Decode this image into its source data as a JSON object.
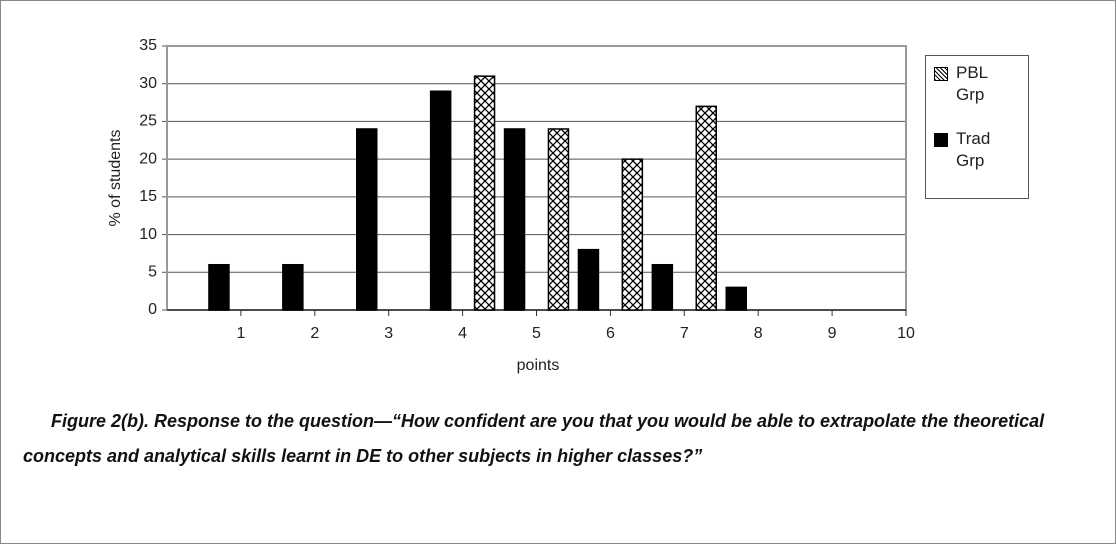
{
  "chart_data": {
    "type": "bar",
    "categories": [
      "1",
      "2",
      "3",
      "4",
      "5",
      "6",
      "7",
      "8",
      "9",
      "10"
    ],
    "series": [
      {
        "name": "PBL Grp",
        "color": "#000000",
        "values": [
          0,
          0,
          0,
          0,
          31,
          24,
          20,
          27,
          0,
          0
        ]
      },
      {
        "name": "Trad Grp",
        "color": "#000000",
        "values": [
          6,
          6,
          24,
          29,
          24,
          8,
          6,
          3,
          0,
          0
        ]
      }
    ],
    "x_label": "points",
    "y_label": "% of students",
    "ylim": [
      0,
      35
    ],
    "yticks": [
      0,
      5,
      10,
      15,
      20,
      25,
      30,
      35
    ],
    "grid": true,
    "legend": "right",
    "caption": "Figure 2(b). Response to the question—“How confident are you that you would be able to extrapolate the theoretical concepts and analytical skills learnt in DE to other subjects in higher classes?”"
  }
}
